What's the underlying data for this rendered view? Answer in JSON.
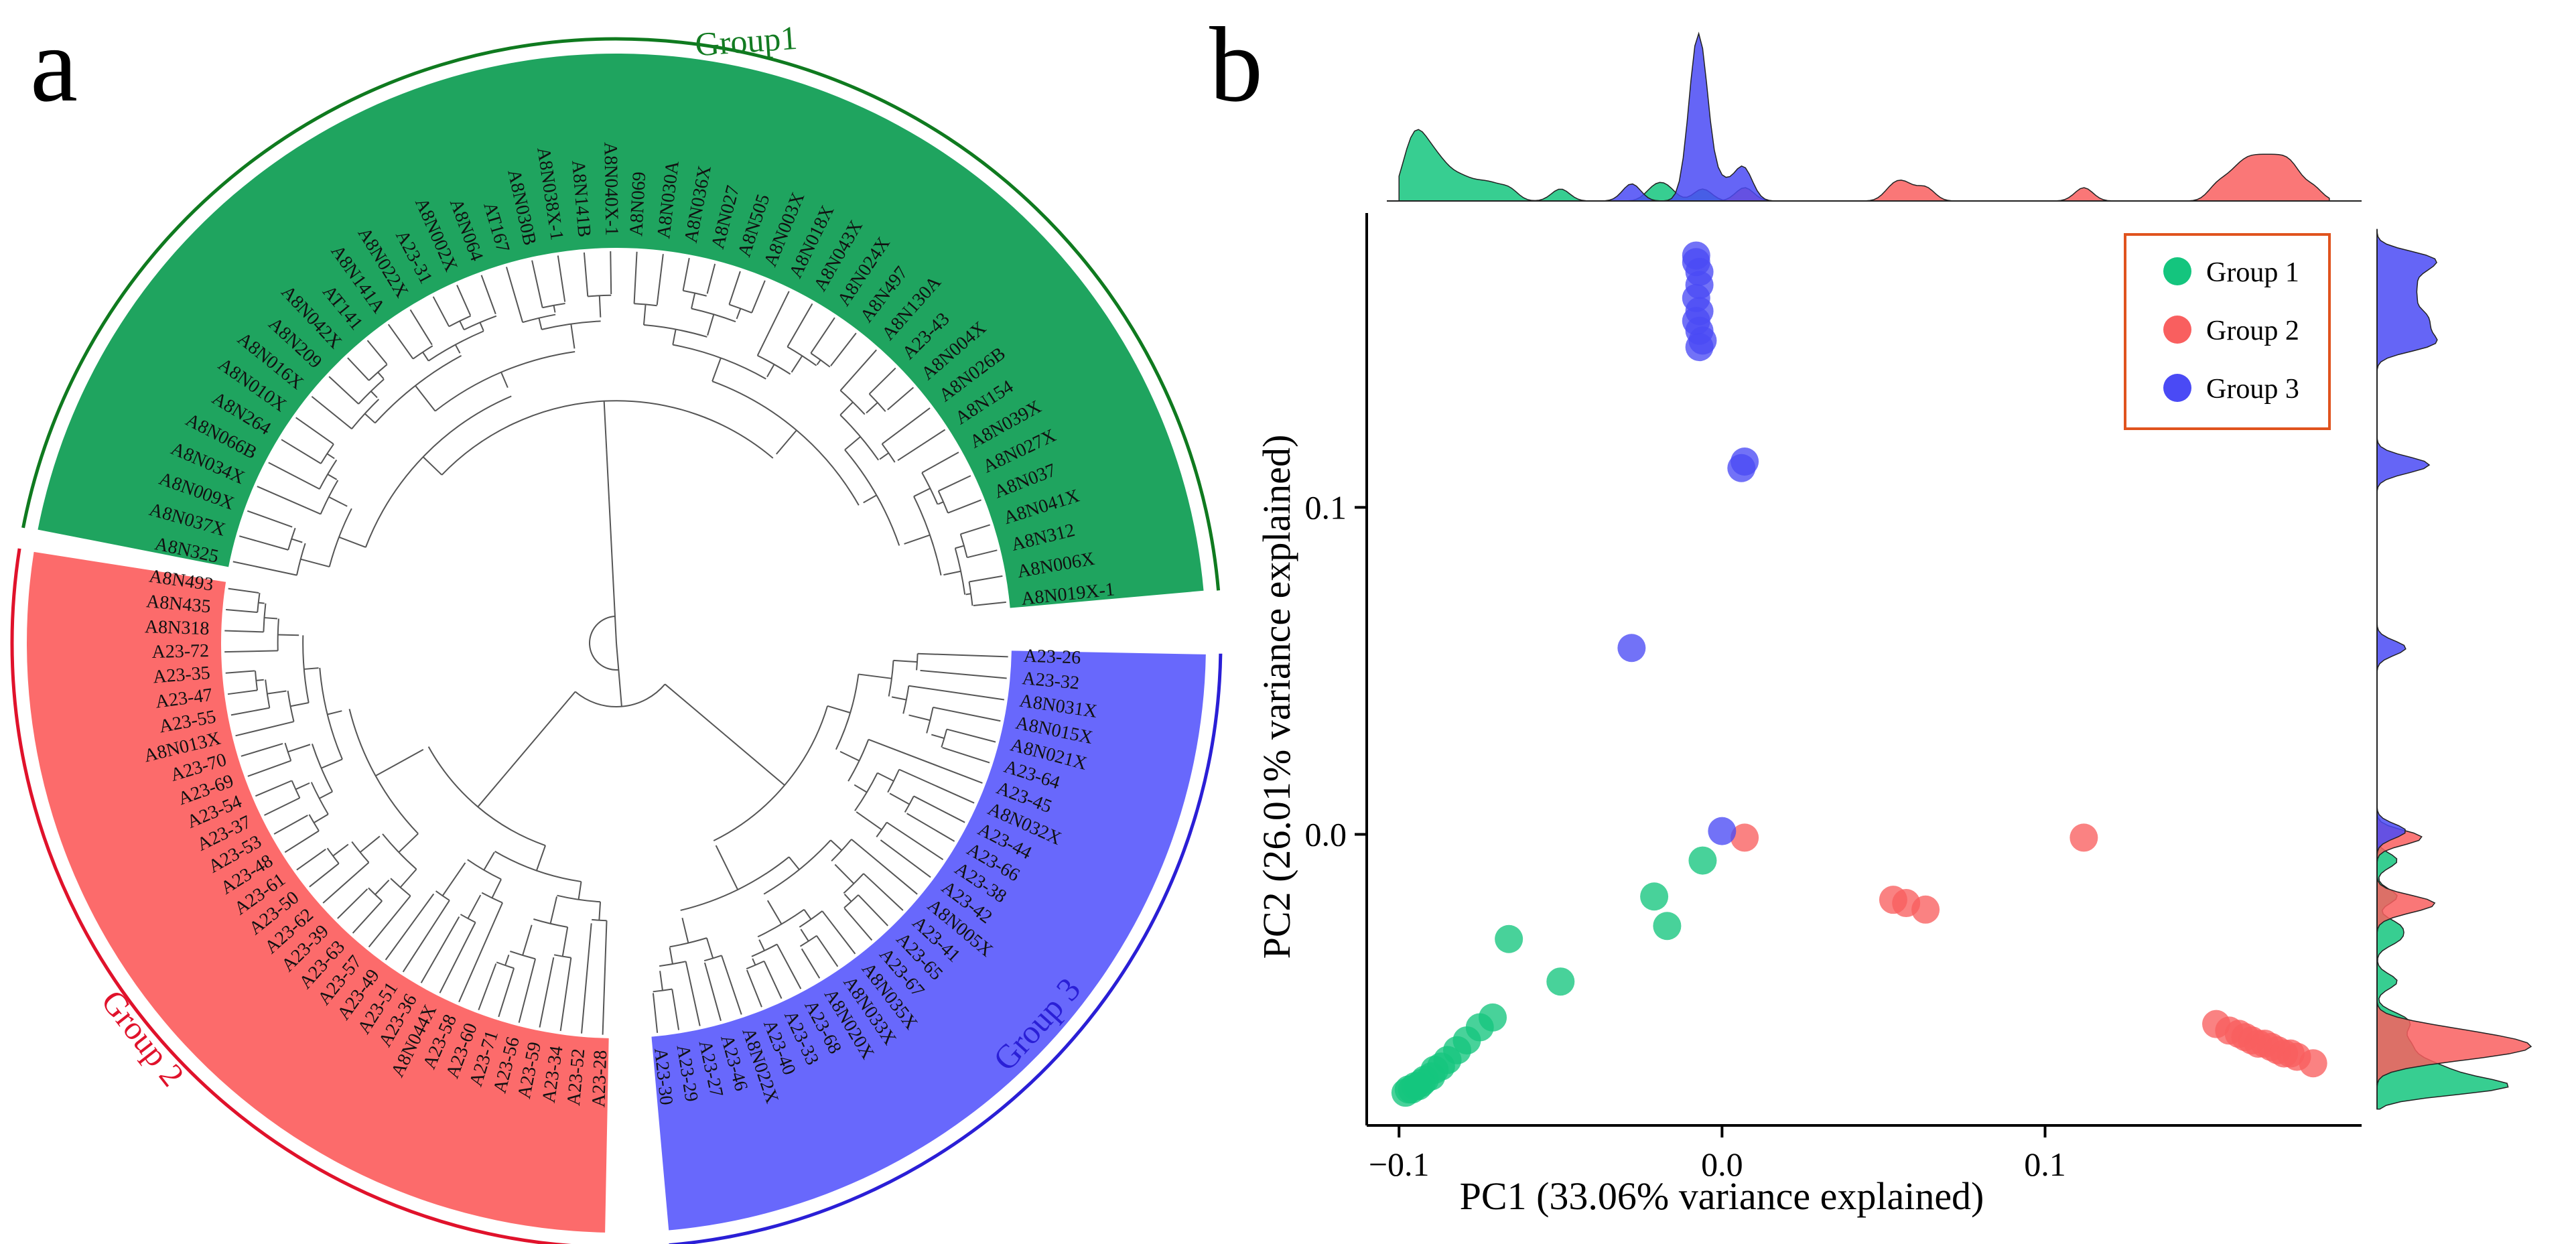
{
  "panels": {
    "a": {
      "label": "a",
      "groups": [
        {
          "name": "Group1",
          "color": "#1fa45f",
          "arc": "#0f7a1f",
          "text": "#137b22",
          "leaves": [
            "A8N325",
            "A8N037X",
            "A8N009X",
            "A8N034X",
            "A8N066B",
            "A8N264",
            "A8N010X",
            "A8N016X",
            "A8N209",
            "A8N042X",
            "AT141",
            "A8N141A",
            "A8N022X",
            "A23-31",
            "A8N002X",
            "A8N064",
            "AT167",
            "A8N030B",
            "A8N038X-1",
            "A8N141B",
            "A8N040X-1",
            "A8N069",
            "A8N030A",
            "A8N036X",
            "A8N027",
            "A8N505",
            "A8N003X",
            "A8N018X",
            "A8N043X",
            "A8N024X",
            "A8N497",
            "A8N130A",
            "A23-43",
            "A8N004X",
            "A8N026B",
            "A8N154",
            "A8N039X",
            "A8N027X",
            "A8N037",
            "A8N041X",
            "A8N312",
            "A8N006X",
            "A8N019X-1"
          ]
        },
        {
          "name": "Group 2",
          "color": "#fc6b6b",
          "arc": "#e0122b",
          "text": "#e0122b",
          "leaves": [
            "A23-28",
            "A23-52",
            "A23-34",
            "A23-59",
            "A23-56",
            "A23-71",
            "A23-60",
            "A23-58",
            "A8N044X",
            "A23-36",
            "A23-51",
            "A23-49",
            "A23-57",
            "A23-63",
            "A23-39",
            "A23-62",
            "A23-50",
            "A23-61",
            "A23-48",
            "A23-53",
            "A23-37",
            "A23-54",
            "A23-69",
            "A23-70",
            "A8N013X",
            "A23-55",
            "A23-47",
            "A23-35",
            "A23-72",
            "A8N318",
            "A8N435",
            "A8N493"
          ]
        },
        {
          "name": "Group 3",
          "color": "#6868fc",
          "arc": "#2a1fd6",
          "text": "#2a1fd6",
          "leaves": [
            "A23-26",
            "A23-32",
            "A8N031X",
            "A8N015X",
            "A8N021X",
            "A23-64",
            "A23-45",
            "A8N032X",
            "A23-44",
            "A23-66",
            "A23-38",
            "A23-42",
            "A8N005X",
            "A23-41",
            "A23-65",
            "A23-67",
            "A8N035X",
            "A8N033X",
            "A8N020X",
            "A23-68",
            "A23-33",
            "A23-40",
            "A8N022X",
            "A23-46",
            "A23-27",
            "A23-29",
            "A23-30"
          ]
        }
      ]
    },
    "b": {
      "label": "b",
      "legend": [
        {
          "label": "Group 1",
          "color": "#14c57e"
        },
        {
          "label": "Group 2",
          "color": "#f95f5f"
        },
        {
          "label": "Group 3",
          "color": "#4a4af5"
        }
      ],
      "legend_border": "#e0531e"
    }
  },
  "chart_data": {
    "type": "scatter",
    "title": "",
    "xlabel": "PC1 (33.06% variance explained)",
    "ylabel": "PC2 (26.01% variance explained)",
    "xlim": [
      -0.11,
      0.198
    ],
    "ylim": [
      -0.089,
      0.19
    ],
    "xticks": [
      -0.1,
      0.0,
      0.1
    ],
    "yticks": [
      0.0,
      0.1
    ],
    "xtick_labels": [
      "−0.1",
      "0.0",
      "0.1"
    ],
    "ytick_labels": [
      "0.0",
      "0.1"
    ],
    "grid": false,
    "series": [
      {
        "name": "Group 1",
        "color": "#14c57e",
        "x": [
          -0.006,
          -0.021,
          -0.017,
          -0.066,
          -0.05,
          -0.071,
          -0.075,
          -0.079,
          -0.082,
          -0.085,
          -0.087,
          -0.089,
          -0.09,
          -0.092,
          -0.093,
          -0.094,
          -0.095,
          -0.096,
          -0.097,
          -0.098
        ],
        "y": [
          -0.008,
          -0.019,
          -0.028,
          -0.032,
          -0.045,
          -0.056,
          -0.059,
          -0.063,
          -0.066,
          -0.069,
          -0.071,
          -0.072,
          -0.074,
          -0.075,
          -0.076,
          -0.077,
          -0.077,
          -0.078,
          -0.078,
          -0.079
        ]
      },
      {
        "name": "Group 2",
        "color": "#f95f5f",
        "x": [
          0.007,
          0.112,
          0.053,
          0.057,
          0.063,
          0.153,
          0.157,
          0.16,
          0.162,
          0.164,
          0.166,
          0.168,
          0.17,
          0.172,
          0.174,
          0.176,
          0.178,
          0.183
        ],
        "y": [
          -0.001,
          -0.001,
          -0.02,
          -0.021,
          -0.023,
          -0.058,
          -0.06,
          -0.061,
          -0.062,
          -0.063,
          -0.064,
          -0.064,
          -0.065,
          -0.066,
          -0.067,
          -0.067,
          -0.068,
          -0.07
        ]
      },
      {
        "name": "Group 3",
        "color": "#4a4af5",
        "x": [
          0.0,
          -0.028,
          0.006,
          0.007,
          -0.008,
          -0.008,
          -0.007,
          -0.007,
          -0.008,
          -0.007,
          -0.008,
          -0.007,
          -0.006,
          -0.007
        ],
        "y": [
          0.001,
          0.057,
          0.112,
          0.114,
          0.177,
          0.175,
          0.172,
          0.168,
          0.164,
          0.16,
          0.157,
          0.154,
          0.151,
          0.149
        ]
      }
    ]
  }
}
